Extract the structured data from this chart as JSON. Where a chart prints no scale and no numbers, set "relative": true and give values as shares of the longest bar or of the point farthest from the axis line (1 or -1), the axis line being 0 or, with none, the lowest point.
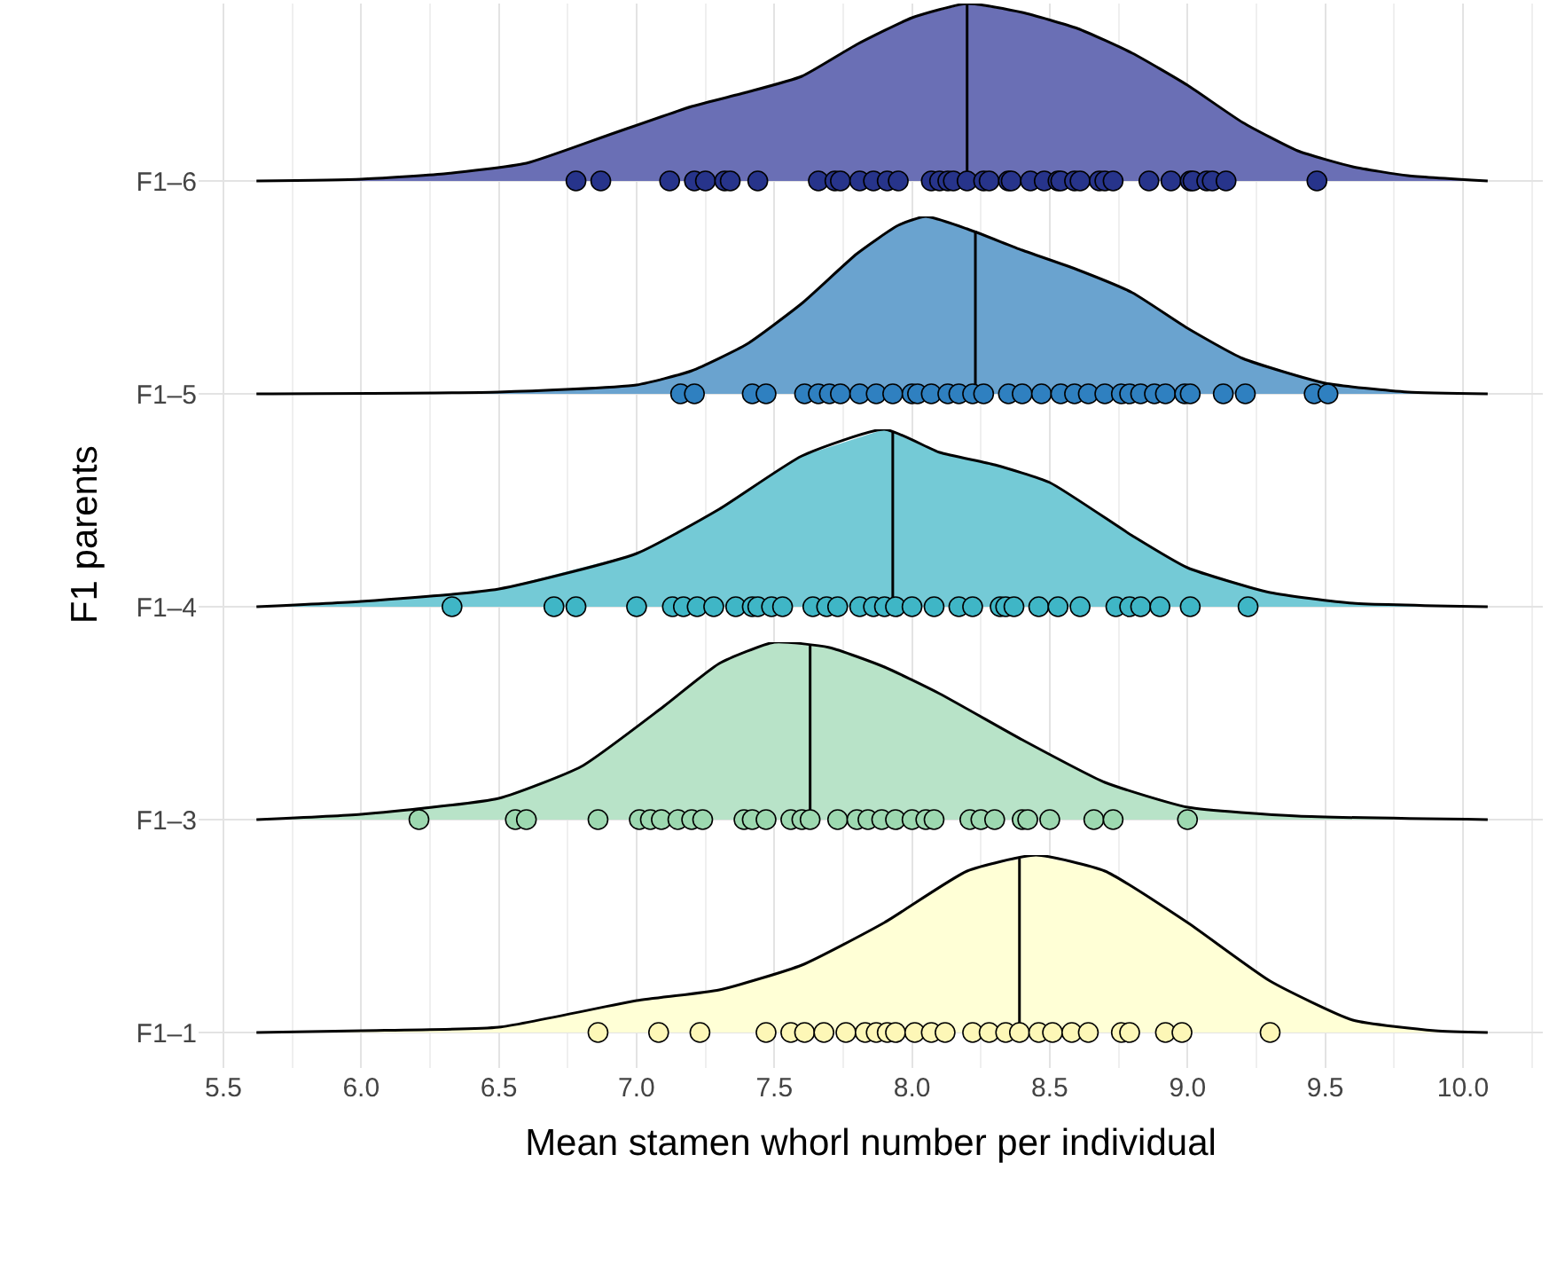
{
  "chart_data": [
    {
      "type": "area",
      "relative": true,
      "ylabel": "F1–6",
      "xlim": [
        5.41,
        10.29
      ],
      "xticks": [
        5.5,
        6,
        6.5,
        7,
        7.5,
        8,
        8.5,
        9,
        9.5,
        10
      ],
      "tick_labels": false,
      "grid": "x",
      "series": [
        {
          "color": "#6a6fb5",
          "x": [
            5.62,
            6.0,
            6.3,
            6.6,
            6.9,
            7.2,
            7.4,
            7.6,
            7.8,
            8.0,
            8.2,
            8.4,
            8.6,
            8.8,
            9.0,
            9.2,
            9.4,
            9.6,
            9.8,
            10.09
          ],
          "values": [
            0,
            0.01,
            0.04,
            0.1,
            0.26,
            0.42,
            0.5,
            0.59,
            0.77,
            0.92,
            1,
            0.95,
            0.86,
            0.72,
            0.54,
            0.33,
            0.17,
            0.08,
            0.03,
            0
          ]
        },
        {
          "type": "line",
          "color": "#000000",
          "x": [
            8.2,
            8.2
          ],
          "values": [
            0,
            1
          ]
        },
        {
          "type": "scatter",
          "color": "#27348b",
          "x": [
            6.78,
            6.87,
            7.12,
            7.21,
            7.25,
            7.32,
            7.34,
            7.44,
            7.66,
            7.72,
            7.74,
            7.81,
            7.86,
            7.91,
            7.95,
            8.07,
            8.1,
            8.13,
            8.15,
            8.2,
            8.26,
            8.28,
            8.35,
            8.36,
            8.43,
            8.48,
            8.53,
            8.54,
            8.59,
            8.61,
            8.68,
            8.7,
            8.73,
            8.86,
            8.94,
            9.01,
            9.02,
            9.07,
            9.09,
            9.14,
            9.47
          ],
          "values": [
            0,
            0,
            0,
            0,
            0,
            0,
            0,
            0,
            0,
            0,
            0,
            0,
            0,
            0,
            0,
            0,
            0,
            0,
            0,
            0,
            0,
            0,
            0,
            0,
            0,
            0,
            0,
            0,
            0,
            0,
            0,
            0,
            0,
            0,
            0,
            0,
            0,
            0,
            0,
            0,
            0
          ]
        }
      ]
    },
    {
      "type": "area",
      "relative": true,
      "ylabel": "F1–5",
      "xlim": [
        5.41,
        10.29
      ],
      "xticks": [
        5.5,
        6,
        6.5,
        7,
        7.5,
        8,
        8.5,
        9,
        9.5,
        10
      ],
      "tick_labels": false,
      "grid": "x",
      "series": [
        {
          "color": "#6aa3cf",
          "x": [
            5.62,
            6.5,
            7.0,
            7.2,
            7.4,
            7.6,
            7.8,
            7.95,
            8.05,
            8.2,
            8.4,
            8.6,
            8.8,
            9.0,
            9.2,
            9.5,
            9.8,
            10.09
          ],
          "values": [
            0,
            0.01,
            0.05,
            0.13,
            0.28,
            0.51,
            0.79,
            0.95,
            1,
            0.93,
            0.81,
            0.7,
            0.57,
            0.37,
            0.2,
            0.06,
            0.01,
            0
          ]
        },
        {
          "type": "line",
          "color": "#000000",
          "x": [
            8.23,
            8.23
          ],
          "values": [
            0,
            0.92
          ]
        },
        {
          "type": "scatter",
          "color": "#2f80c0",
          "x": [
            7.16,
            7.21,
            7.42,
            7.47,
            7.61,
            7.66,
            7.7,
            7.74,
            7.81,
            7.87,
            7.93,
            8.0,
            8.02,
            8.07,
            8.13,
            8.17,
            8.22,
            8.26,
            8.35,
            8.4,
            8.47,
            8.54,
            8.59,
            8.64,
            8.7,
            8.76,
            8.79,
            8.83,
            8.88,
            8.92,
            8.99,
            9.01,
            9.13,
            9.21,
            9.46,
            9.51
          ],
          "values": [
            0,
            0,
            0,
            0,
            0,
            0,
            0,
            0,
            0,
            0,
            0,
            0,
            0,
            0,
            0,
            0,
            0,
            0,
            0,
            0,
            0,
            0,
            0,
            0,
            0,
            0,
            0,
            0,
            0,
            0,
            0,
            0,
            0,
            0,
            0,
            0
          ]
        }
      ]
    },
    {
      "type": "area",
      "relative": true,
      "ylabel": "F1–4",
      "annotations": [
        "F1 parents"
      ],
      "xlim": [
        5.41,
        10.29
      ],
      "xticks": [
        5.5,
        6,
        6.5,
        7,
        7.5,
        8,
        8.5,
        9,
        9.5,
        10
      ],
      "tick_labels": false,
      "grid": "x",
      "series": [
        {
          "color": "#74cad6",
          "x": [
            5.62,
            6.0,
            6.5,
            7.0,
            7.3,
            7.6,
            7.9,
            8.1,
            8.3,
            8.5,
            8.8,
            9.0,
            9.3,
            9.6,
            10.09
          ],
          "values": [
            0,
            0.03,
            0.1,
            0.3,
            0.55,
            0.85,
            1,
            0.87,
            0.8,
            0.7,
            0.4,
            0.22,
            0.08,
            0.02,
            0
          ]
        },
        {
          "type": "line",
          "color": "#000000",
          "x": [
            7.93,
            7.93
          ],
          "values": [
            0,
            0.99
          ]
        },
        {
          "type": "scatter",
          "color": "#3fb6c6",
          "x": [
            6.33,
            6.7,
            6.78,
            7.0,
            7.13,
            7.17,
            7.22,
            7.28,
            7.36,
            7.42,
            7.44,
            7.49,
            7.53,
            7.64,
            7.69,
            7.73,
            7.81,
            7.86,
            7.9,
            7.94,
            8.0,
            8.08,
            8.17,
            8.22,
            8.32,
            8.34,
            8.37,
            8.46,
            8.53,
            8.61,
            8.74,
            8.79,
            8.83,
            8.9,
            9.01,
            9.22
          ],
          "values": [
            0,
            0,
            0,
            0,
            0,
            0,
            0,
            0,
            0,
            0,
            0,
            0,
            0,
            0,
            0,
            0,
            0,
            0,
            0,
            0,
            0,
            0,
            0,
            0,
            0,
            0,
            0,
            0,
            0,
            0,
            0,
            0,
            0,
            0,
            0,
            0
          ]
        }
      ]
    },
    {
      "type": "area",
      "relative": true,
      "ylabel": "F1–3",
      "xlim": [
        5.41,
        10.29
      ],
      "xticks": [
        5.5,
        6,
        6.5,
        7,
        7.5,
        8,
        8.5,
        9,
        9.5,
        10
      ],
      "tick_labels": false,
      "grid": "x",
      "series": [
        {
          "color": "#b8e3c8",
          "x": [
            5.62,
            6.0,
            6.5,
            6.8,
            7.1,
            7.3,
            7.5,
            7.7,
            7.9,
            8.1,
            8.4,
            8.7,
            9.0,
            9.4,
            10.09
          ],
          "values": [
            0,
            0.03,
            0.12,
            0.3,
            0.64,
            0.88,
            1,
            0.97,
            0.86,
            0.71,
            0.45,
            0.21,
            0.07,
            0.02,
            0
          ]
        },
        {
          "type": "line",
          "color": "#000000",
          "x": [
            7.63,
            7.63
          ],
          "values": [
            0,
            0.98
          ]
        },
        {
          "type": "scatter",
          "color": "#9dd8b0",
          "x": [
            6.21,
            6.56,
            6.6,
            6.86,
            7.01,
            7.05,
            7.09,
            7.15,
            7.2,
            7.24,
            7.39,
            7.42,
            7.47,
            7.56,
            7.6,
            7.63,
            7.73,
            7.8,
            7.84,
            7.89,
            7.94,
            8.0,
            8.05,
            8.08,
            8.21,
            8.25,
            8.3,
            8.4,
            8.42,
            8.5,
            8.66,
            8.73,
            9.0
          ],
          "values": [
            0,
            0,
            0,
            0,
            0,
            0,
            0,
            0,
            0,
            0,
            0,
            0,
            0,
            0,
            0,
            0,
            0,
            0,
            0,
            0,
            0,
            0,
            0,
            0,
            0,
            0,
            0,
            0,
            0,
            0,
            0,
            0,
            0
          ]
        }
      ]
    },
    {
      "type": "area",
      "relative": true,
      "ylabel": "F1–1",
      "xlabel": "Mean stamen whorl number per individual",
      "xlim": [
        5.41,
        10.29
      ],
      "xticks": [
        5.5,
        {
          "value": 6.0,
          "label": "6.0"
        },
        6.5,
        {
          "value": 7.0,
          "label": "7.0"
        },
        7.5,
        {
          "value": 8.0,
          "label": "8.0"
        },
        8.5,
        {
          "value": 9.0,
          "label": "9.0"
        },
        9.5,
        {
          "value": 10.0,
          "label": "10.0"
        }
      ],
      "tick_labels": "x",
      "grid": "x",
      "series": [
        {
          "color": "#ffffd6",
          "x": [
            5.62,
            6.0,
            6.5,
            7.0,
            7.3,
            7.6,
            7.9,
            8.2,
            8.45,
            8.7,
            9.0,
            9.3,
            9.6,
            9.9,
            10.09
          ],
          "values": [
            0,
            0.01,
            0.03,
            0.18,
            0.24,
            0.38,
            0.62,
            0.91,
            1,
            0.91,
            0.62,
            0.29,
            0.07,
            0.01,
            0
          ]
        },
        {
          "type": "line",
          "color": "#000000",
          "x": [
            8.39,
            8.39
          ],
          "values": [
            0,
            0.98
          ]
        },
        {
          "type": "scatter",
          "color": "#fdf7b7",
          "x": [
            6.86,
            7.08,
            7.23,
            7.47,
            7.56,
            7.61,
            7.68,
            7.76,
            7.83,
            7.87,
            7.91,
            7.94,
            8.01,
            8.07,
            8.12,
            8.22,
            8.28,
            8.34,
            8.39,
            8.46,
            8.51,
            8.58,
            8.64,
            8.76,
            8.79,
            8.92,
            8.98,
            9.3
          ],
          "values": [
            0,
            0,
            0,
            0,
            0,
            0,
            0,
            0,
            0,
            0,
            0,
            0,
            0,
            0,
            0,
            0,
            0,
            0,
            0,
            0,
            0,
            0,
            0,
            0,
            0,
            0,
            0,
            0
          ]
        }
      ]
    }
  ]
}
